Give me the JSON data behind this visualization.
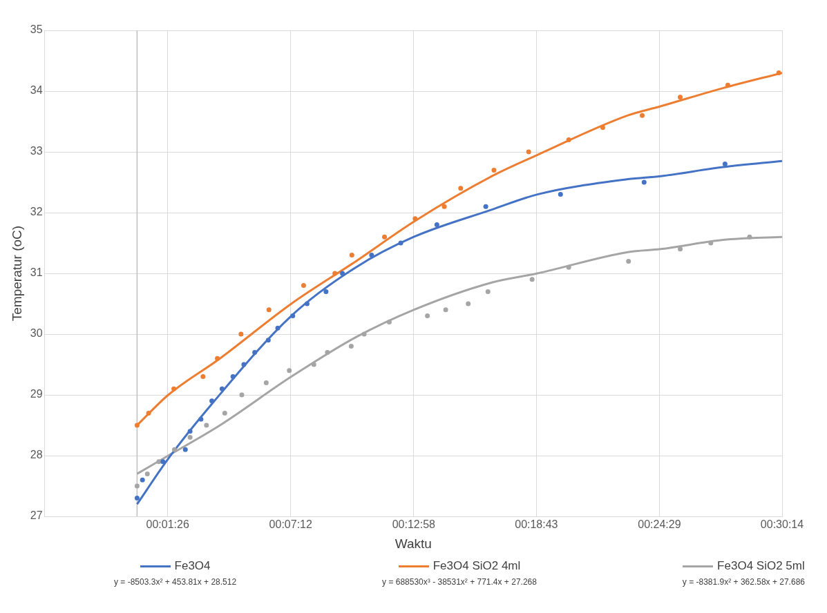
{
  "chart_data": {
    "type": "scatter",
    "xlabel": "Waktu",
    "ylabel": "Temperatur (oC)",
    "xlim": [
      -0.072222,
      0.503889
    ],
    "xticks": [
      {
        "value": 0.023889,
        "label": "00:01:26"
      },
      {
        "value": 0.12,
        "label": "00:07:12"
      },
      {
        "value": 0.216111,
        "label": "00:12:58"
      },
      {
        "value": 0.311944,
        "label": "00:18:43"
      },
      {
        "value": 0.408056,
        "label": "00:24:29"
      },
      {
        "value": 0.503889,
        "label": "00:30:14"
      }
    ],
    "ylim": [
      27,
      35
    ],
    "yticks": [
      27,
      28,
      29,
      30,
      31,
      32,
      33,
      34,
      35
    ],
    "grid": true,
    "legend": "bottom",
    "ref_lines": [
      {
        "axis": "x",
        "value": 0,
        "color": "#bfbfbf"
      }
    ],
    "annotations": [
      "y = -8503.3x² + 453.81x + 28.512",
      "y = 688530x³ - 38531x² + 771.4x + 27.268",
      "y = -8381.9x² + 362.58x + 27.686"
    ],
    "series": [
      {
        "type": "scatter",
        "marker": "circle",
        "color": "#4472c4",
        "x": [
          0,
          0.0042,
          0.0202,
          0.0377,
          0.0414,
          0.0499,
          0.0584,
          0.0664,
          0.0749,
          0.0834,
          0.0919,
          0.1025,
          0.1099,
          0.1216,
          0.1328,
          0.1476,
          0.1604,
          0.1832,
          0.206,
          0.2342,
          0.2724,
          0.3308,
          0.3961,
          0.4593
        ],
        "values": [
          27.3,
          27.6,
          27.9,
          28.1,
          28.4,
          28.6,
          28.9,
          29.1,
          29.3,
          29.5,
          29.7,
          29.9,
          30.1,
          30.3,
          30.5,
          30.7,
          31.0,
          31.3,
          31.5,
          31.8,
          32.1,
          32.3,
          32.5,
          32.8
        ]
      },
      {
        "type": "scatter",
        "marker": "circle",
        "color": "#ed7d31",
        "x": [
          0,
          0.009,
          0.0287,
          0.0515,
          0.0627,
          0.0812,
          0.103,
          0.1301,
          0.1545,
          0.1678,
          0.1933,
          0.2172,
          0.24,
          0.2528,
          0.2788,
          0.3059,
          0.3372,
          0.3638,
          0.3946,
          0.4243,
          0.4615,
          0.5013
        ],
        "values": [
          28.5,
          28.7,
          29.1,
          29.3,
          29.6,
          30.0,
          30.4,
          30.8,
          31.0,
          31.3,
          31.6,
          31.9,
          32.1,
          32.4,
          32.7,
          33.0,
          33.2,
          33.4,
          33.6,
          33.9,
          34.1,
          34.3
        ]
      },
      {
        "type": "scatter",
        "marker": "circle",
        "color": "#a5a5a5",
        "x": [
          0,
          0.008,
          0.017,
          0.0292,
          0.0414,
          0.0542,
          0.0685,
          0.0818,
          0.1009,
          0.1189,
          0.1381,
          0.1487,
          0.1673,
          0.1774,
          0.197,
          0.2268,
          0.2411,
          0.2587,
          0.2741,
          0.3086,
          0.3372,
          0.3839,
          0.4243,
          0.4482,
          0.4785
        ],
        "values": [
          27.5,
          27.7,
          27.9,
          28.1,
          28.3,
          28.5,
          28.7,
          29.0,
          29.2,
          29.4,
          29.5,
          29.7,
          29.8,
          30.0,
          30.2,
          30.3,
          30.4,
          30.5,
          30.7,
          30.9,
          31.1,
          31.2,
          31.4,
          31.5,
          31.6
        ]
      },
      {
        "type": "line",
        "marker": "none",
        "name": "Fe3O4",
        "color": "#4472c4",
        "x": [
          0,
          0.0244,
          0.0584,
          0.1205,
          0.171,
          0.2161,
          0.2772,
          0.3128,
          0.3834,
          0.4089,
          0.4577,
          0.503889
        ],
        "values": [
          27.2,
          27.95,
          28.85,
          30.3,
          31.1,
          31.6,
          32.05,
          32.3,
          32.55,
          32.6,
          32.75,
          32.85
        ]
      },
      {
        "type": "line",
        "marker": "none",
        "name": "Fe3O4 SiO2 4ml",
        "color": "#ed7d31",
        "x": [
          0,
          0.0244,
          0.0648,
          0.1205,
          0.171,
          0.2161,
          0.2772,
          0.3128,
          0.3834,
          0.4089,
          0.4577,
          0.503889
        ],
        "values": [
          28.5,
          29.0,
          29.6,
          30.5,
          31.2,
          31.85,
          32.6,
          32.95,
          33.6,
          33.75,
          34.05,
          34.3
        ]
      },
      {
        "type": "line",
        "marker": "none",
        "name": "Fe3O4 SiO2 5ml",
        "color": "#a5a5a5",
        "x": [
          0,
          0.0244,
          0.0648,
          0.1205,
          0.171,
          0.2161,
          0.2772,
          0.3128,
          0.3834,
          0.4089,
          0.4577,
          0.503889
        ],
        "values": [
          27.7,
          28.0,
          28.5,
          29.3,
          29.95,
          30.4,
          30.85,
          31.0,
          31.35,
          31.4,
          31.55,
          31.6
        ]
      }
    ]
  }
}
